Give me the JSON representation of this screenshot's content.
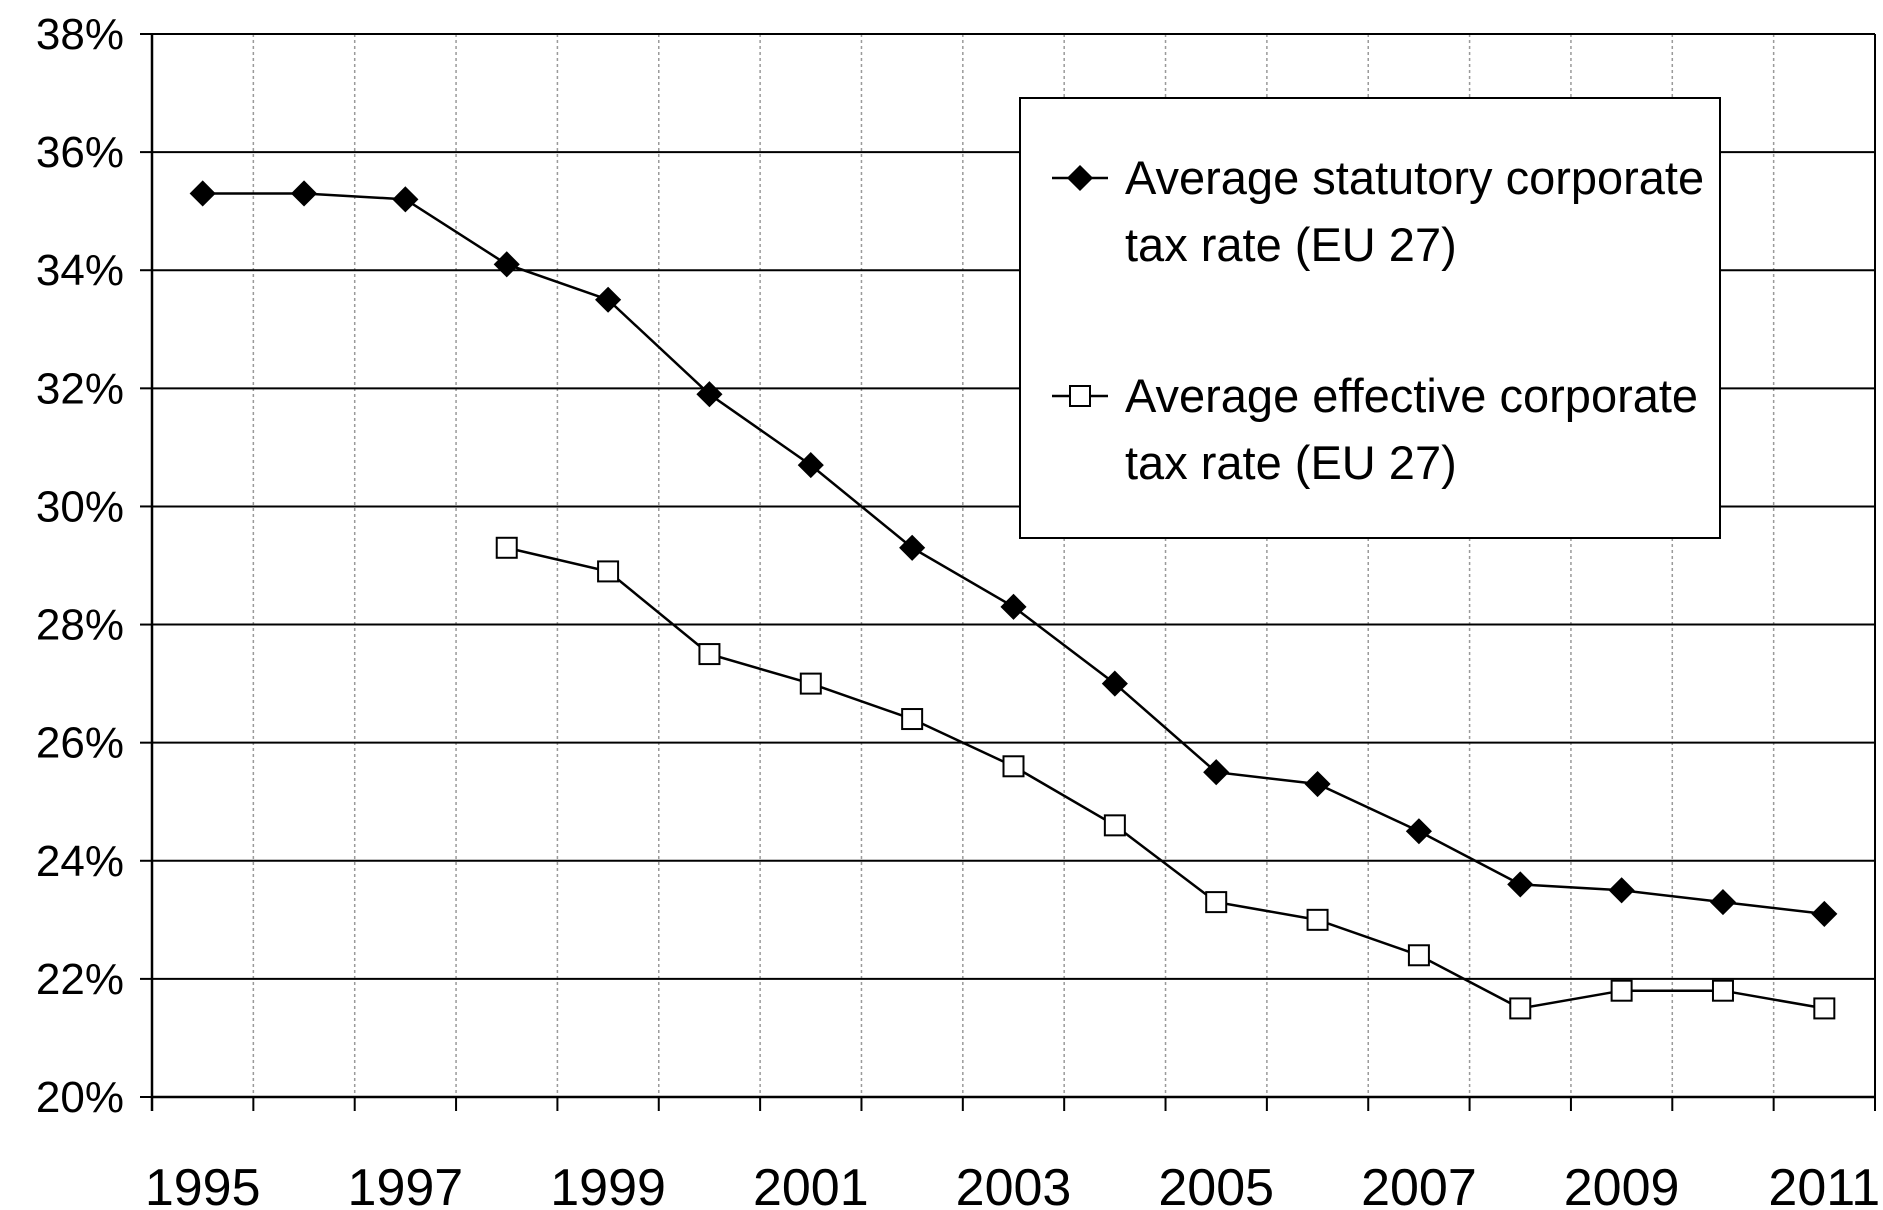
{
  "chart_data": {
    "type": "line",
    "title": "",
    "xlabel": "",
    "ylabel": "",
    "x": [
      1995,
      1996,
      1997,
      1998,
      1999,
      2000,
      2001,
      2002,
      2003,
      2004,
      2005,
      2006,
      2007,
      2008,
      2009,
      2010,
      2011
    ],
    "x_tick_labels": [
      "1995",
      "1997",
      "1999",
      "2001",
      "2003",
      "2005",
      "2007",
      "2009",
      "2011"
    ],
    "y_tick_labels": [
      "20%",
      "22%",
      "24%",
      "26%",
      "28%",
      "30%",
      "32%",
      "34%",
      "36%",
      "38%"
    ],
    "ylim": [
      20,
      38
    ],
    "y_unit": "%",
    "grid": true,
    "legend_position": "top-right",
    "series": [
      {
        "name": "Average statutory corporate tax rate (EU 27)",
        "legend_lines": [
          "Average statutory corporate",
          "tax rate (EU 27)"
        ],
        "marker": "filled-diamond",
        "color": "#000000",
        "values": [
          35.3,
          35.3,
          35.2,
          34.1,
          33.5,
          31.9,
          30.7,
          29.3,
          28.3,
          27.0,
          25.5,
          25.3,
          24.5,
          23.6,
          23.5,
          23.3,
          23.1
        ]
      },
      {
        "name": "Average effective corporate tax rate (EU 27)",
        "legend_lines": [
          "Average effective corporate",
          "tax rate (EU 27)"
        ],
        "marker": "open-square",
        "color": "#000000",
        "values": [
          null,
          null,
          null,
          29.3,
          28.9,
          27.5,
          27.0,
          26.4,
          25.6,
          24.6,
          23.3,
          23.0,
          22.4,
          21.5,
          21.8,
          21.8,
          21.5
        ]
      }
    ]
  }
}
